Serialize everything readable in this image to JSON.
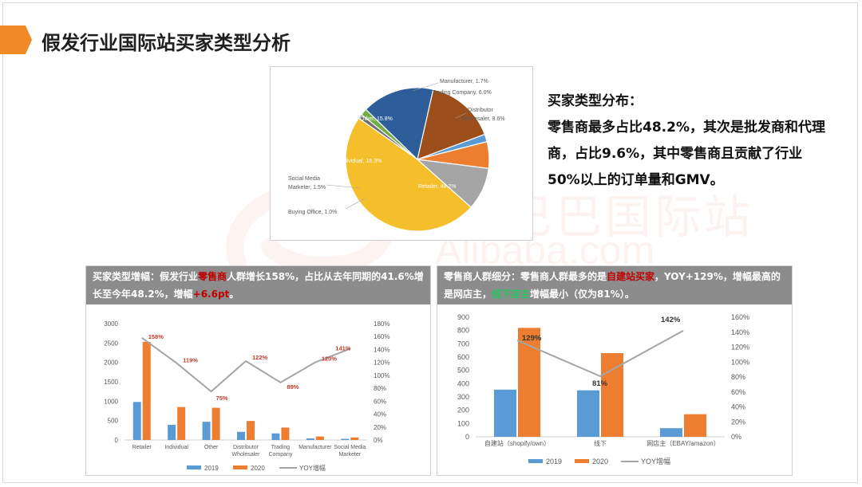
{
  "page": {
    "title": "假发行业国际站买家类型分析"
  },
  "watermark": {
    "cn": "阿里巴巴国际站",
    "en": "Alibaba.com"
  },
  "summary": {
    "heading": "买家类型分布：",
    "body": "零售商最多占比48.2%，其次是批发商和代理商，占比9.6%，其中零售商且贡献了行业50%以上的订单量和GMV。"
  },
  "panel_left": {
    "hdr_a": "买家类型增幅：",
    "hdr_b": "假发行业",
    "hdr_hl": "零售商",
    "hdr_c": "人群增长158%，占比从去年同期的41.6%增长至今年48.2%，增幅",
    "hdr_plus": "+6.6pt",
    "hdr_end": "。"
  },
  "panel_right": {
    "hdr_a": "零售商人群细分：",
    "hdr_b": "零售商人群最多的是",
    "hdr_hl": "自建站买家",
    "hdr_c": "，YOY+129%，增幅最高的是网店主，",
    "hdr_green": "线下店主",
    "hdr_d": "增幅最小（仅为81%）。"
  },
  "colors": {
    "accent": "#f08a24",
    "blue": "#5b9bd5",
    "orange": "#ed7d31",
    "gray": "#a5a5a5",
    "label_red": "#c0392b"
  },
  "chart_data": [
    {
      "type": "pie",
      "slices": [
        {
          "label": "Retailer, 48.2%",
          "value": 48.2,
          "color": "#f5be2b"
        },
        {
          "label": "Buying Office, 1.0%",
          "value": 1.0,
          "color": "#6f6f6f"
        },
        {
          "label": "Social Media Marketer, 1.5%",
          "value": 1.5,
          "color": "#70ad47"
        },
        {
          "label": "Individual, 16.3%",
          "value": 16.3,
          "color": "#2e5e9a"
        },
        {
          "label": "Other, 15.8%",
          "value": 15.8,
          "color": "#9c4f1b"
        },
        {
          "label": "Manufacturer, 1.7%",
          "value": 1.7,
          "color": "#5b9bd5"
        },
        {
          "label": "Trading Company, 6.0%",
          "value": 6.0,
          "color": "#ed7d31"
        },
        {
          "label": "Distributor Wholesaler, 9.6%",
          "value": 9.6,
          "color": "#a5a5a5"
        }
      ]
    },
    {
      "type": "bar",
      "categories": [
        "Retailer",
        "Individual",
        "Other",
        "Distributor Wholesaler",
        "Trading Company",
        "Manufacturer",
        "Social Media Marketer"
      ],
      "series": [
        {
          "name": "2019",
          "values": [
            980,
            390,
            470,
            210,
            170,
            40,
            30
          ]
        },
        {
          "name": "2020",
          "values": [
            2530,
            850,
            830,
            490,
            320,
            90,
            65
          ]
        }
      ],
      "line": {
        "name": "YOY增幅",
        "values": [
          158,
          119,
          75,
          122,
          89,
          120,
          141
        ],
        "labels": [
          "158%",
          "119%",
          "75%",
          "122%",
          "89%",
          "120%",
          "141%"
        ]
      },
      "ylim": [
        0,
        3000
      ],
      "yticks": [
        "0",
        "500",
        "1000",
        "1500",
        "2000",
        "2500",
        "3000"
      ],
      "y2lim": [
        0,
        180
      ],
      "y2ticks": [
        "0%",
        "20%",
        "40%",
        "60%",
        "80%",
        "100%",
        "120%",
        "140%",
        "160%",
        "180%"
      ]
    },
    {
      "type": "bar",
      "categories": [
        "自建站（shopify/own）",
        "线下",
        "网店主（EBAY/amazon）"
      ],
      "series": [
        {
          "name": "2019",
          "values": [
            355,
            350,
            65
          ]
        },
        {
          "name": "2020",
          "values": [
            820,
            630,
            170
          ]
        }
      ],
      "line": {
        "name": "YOY增幅",
        "values": [
          129,
          81,
          142
        ],
        "labels": [
          "129%",
          "81%",
          "142%"
        ]
      },
      "ylim": [
        0,
        900
      ],
      "yticks": [
        "0",
        "100",
        "200",
        "300",
        "400",
        "500",
        "600",
        "700",
        "800",
        "900"
      ],
      "y2lim": [
        0,
        160
      ],
      "y2ticks": [
        "0%",
        "20%",
        "40%",
        "60%",
        "80%",
        "100%",
        "120%",
        "140%",
        "160%"
      ]
    }
  ]
}
